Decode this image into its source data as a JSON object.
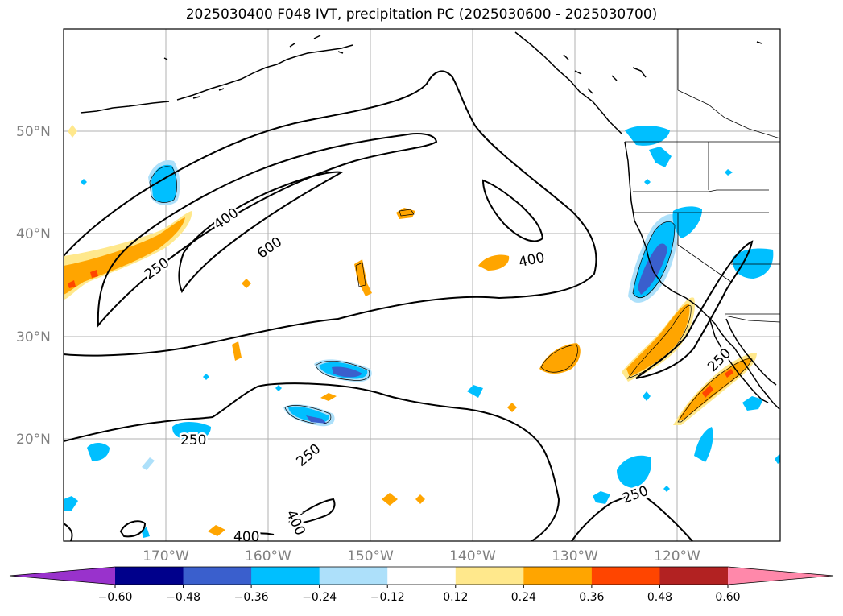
{
  "title": "2025030400 F048 IVT, precipitation PC (2025030600 - 2025030700)",
  "lat_labels": [
    "50°N",
    "40°N",
    "30°N",
    "20°N"
  ],
  "lon_labels": [
    "170°W",
    "160°W",
    "150°W",
    "140°W",
    "130°W",
    "120°W"
  ],
  "contour_labels": {
    "c250_a": "250",
    "c400_a": "400",
    "c600": "600",
    "c400_b": "400",
    "c250_b": "250",
    "c250_c": "250",
    "c250_d": "250",
    "c400_c": "400",
    "c400_d": "400",
    "c250_e": "250"
  },
  "colorbar": {
    "ticks": [
      "−0.60",
      "−0.48",
      "−0.36",
      "−0.24",
      "−0.12",
      "0.12",
      "0.24",
      "0.36",
      "0.48",
      "0.60"
    ],
    "colors": [
      "#9932CC",
      "#00008B",
      "#3A5FCD",
      "#00BFFF",
      "#ADE0FA",
      "#FFFFFF",
      "#FFE88C",
      "#FFA500",
      "#FF4500",
      "#B22222",
      "#FF88AA"
    ]
  },
  "colors": {
    "strong_pos": "#FF4500",
    "pos": "#FFA500",
    "weak_pos": "#FFE88C",
    "weak_neg": "#ADE0FA",
    "neg": "#00BFFF",
    "strong_neg": "#3A5FCD"
  }
}
